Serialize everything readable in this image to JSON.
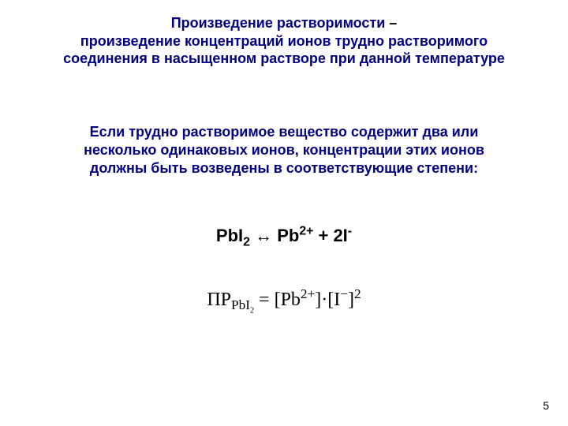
{
  "colors": {
    "navy": "#000080",
    "black": "#000000",
    "background": "#ffffff"
  },
  "typography": {
    "title_fontsize_pt": 18,
    "body_fontsize_pt": 18,
    "equation_fontsize_pt": 22,
    "ksp_fontsize_pt": 24,
    "footer_fontsize_pt": 14,
    "weight": "bold"
  },
  "title": {
    "term": "Произведение растворимости",
    "dash": " – ",
    "def_line1": "произведение концентраций ионов трудно растворимого",
    "def_line2": "соединения в насыщенном растворе при данной температуре"
  },
  "paragraph": {
    "line1": "Если трудно растворимое вещество  содержит два или",
    "line2": "несколько одинаковых ионов, концентрации этих ионов",
    "line3": "должны быть возведены в соответствующие степени:"
  },
  "dissociation": {
    "compound_base": "PbI",
    "compound_sub": "2",
    "arrow": "  ↔  ",
    "cation_base": "Pb",
    "cation_sup": "2+",
    "plus": " + 2I",
    "anion_sup": "-"
  },
  "ksp_equation": {
    "name": "ПР",
    "name_sub_base": "PbI",
    "name_sub_sub": "2",
    "eq": " = [Pb",
    "cat_sup": "2+",
    "mid": "]·[I",
    "an_sup": "−",
    "close": "]",
    "pow": "2"
  },
  "footer": {
    "page": "5"
  }
}
